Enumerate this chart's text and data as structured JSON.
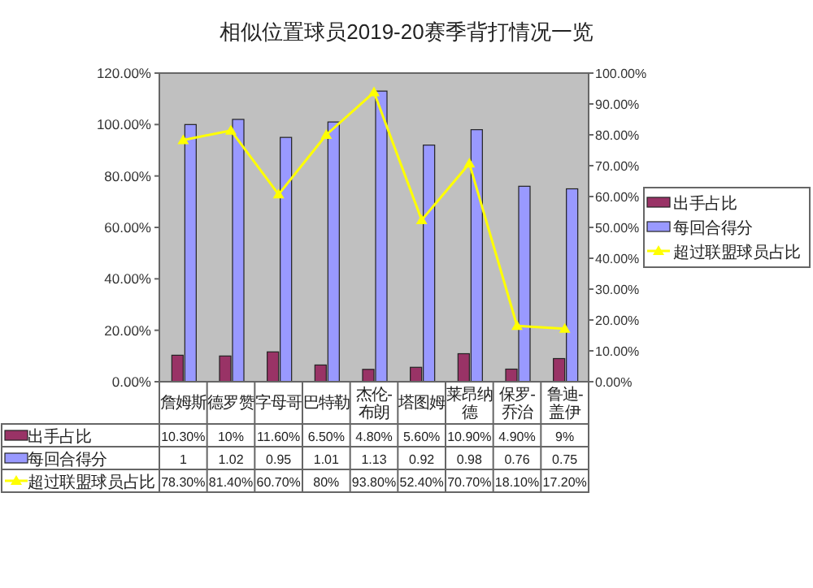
{
  "chart_data": {
    "type": "bar",
    "title": "相似位置球员2019-20赛季背打情况一览",
    "categories": [
      "詹姆斯",
      "德罗赞",
      "字母哥",
      "巴特勒",
      "杰伦-布朗",
      "塔图姆",
      "莱昂纳德",
      "保罗-乔治",
      "鲁迪-盖伊"
    ],
    "series": [
      {
        "name": "出手占比",
        "color": "#993366",
        "values": [
          0.103,
          0.1,
          0.116,
          0.065,
          0.048,
          0.056,
          0.109,
          0.049,
          0.09
        ],
        "value_labels": [
          "10.30%",
          "10%",
          "11.60%",
          "6.50%",
          "4.80%",
          "5.60%",
          "10.90%",
          "4.90%",
          "9%"
        ]
      },
      {
        "name": "每回合得分",
        "color": "#9999ff",
        "values": [
          1,
          1.02,
          0.95,
          1.01,
          1.13,
          0.92,
          0.98,
          0.76,
          0.75
        ],
        "value_labels": [
          "1",
          "1.02",
          "0.95",
          "1.01",
          "1.13",
          "0.92",
          "0.98",
          "0.76",
          "0.75"
        ]
      },
      {
        "name": "超过联盟球员占比",
        "type": "line",
        "axis": "y2",
        "color": "#ffff00",
        "marker": "triangle",
        "values": [
          0.783,
          0.814,
          0.607,
          0.8,
          0.938,
          0.524,
          0.707,
          0.181,
          0.172
        ],
        "value_labels": [
          "78.30%",
          "81.40%",
          "60.70%",
          "80%",
          "93.80%",
          "52.40%",
          "70.70%",
          "18.10%",
          "17.20%"
        ]
      }
    ],
    "ylim": [
      0,
      1.2
    ],
    "yticks": [
      {
        "value": 0,
        "label": "0.00%"
      },
      {
        "value": 0.2,
        "label": "20.00%"
      },
      {
        "value": 0.4,
        "label": "40.00%"
      },
      {
        "value": 0.6,
        "label": "60.00%"
      },
      {
        "value": 0.8,
        "label": "80.00%"
      },
      {
        "value": 1,
        "label": "100.00%"
      },
      {
        "value": 1.2,
        "label": "120.00%"
      }
    ],
    "y2lim": [
      0,
      1
    ],
    "y2ticks": [
      {
        "value": 0,
        "label": "0.00%"
      },
      {
        "value": 0.1,
        "label": "10.00%"
      },
      {
        "value": 0.2,
        "label": "20.00%"
      },
      {
        "value": 0.3,
        "label": "30.00%"
      },
      {
        "value": 0.4,
        "label": "40.00%"
      },
      {
        "value": 0.5,
        "label": "50.00%"
      },
      {
        "value": 0.6,
        "label": "60.00%"
      },
      {
        "value": 0.7,
        "label": "70.00%"
      },
      {
        "value": 0.8,
        "label": "80.00%"
      },
      {
        "value": 0.9,
        "label": "90.00%"
      },
      {
        "value": 1,
        "label": "100.00%"
      }
    ],
    "legend": "right",
    "grid": false
  }
}
